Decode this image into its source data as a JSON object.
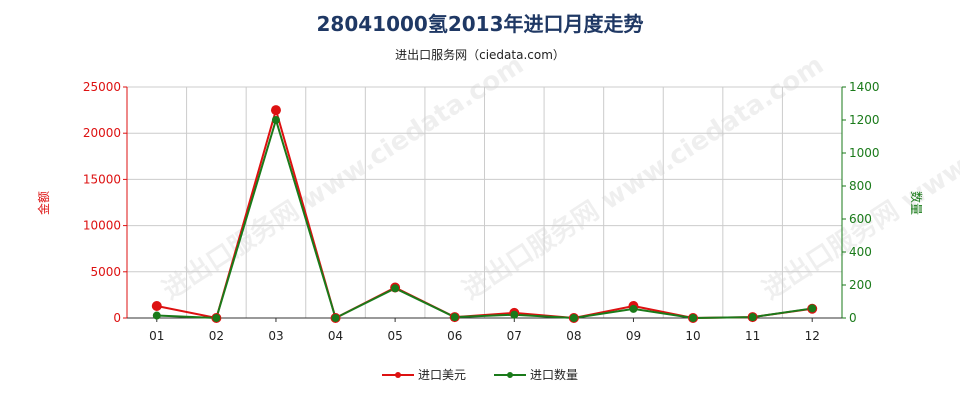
{
  "title": "28041000氢2013年进口月度走势",
  "subtitle": "进出口服务网（ciedata.com）",
  "watermark": "进出口服务网 www.ciedata.com",
  "colors": {
    "usd": "#dd1111",
    "qty": "#1a7a1a",
    "title": "#1f3864",
    "grid": "#cccccc"
  },
  "chart_data": {
    "type": "line",
    "title": "28041000氢2013年进口月度走势",
    "categories": [
      "01",
      "02",
      "03",
      "04",
      "05",
      "06",
      "07",
      "08",
      "09",
      "10",
      "11",
      "12"
    ],
    "series": [
      {
        "name": "进口美元",
        "axis": "left",
        "values": [
          1300,
          0,
          22500,
          0,
          3300,
          100,
          550,
          0,
          1300,
          0,
          100,
          1000
        ]
      },
      {
        "name": "进口数量",
        "axis": "right",
        "values": [
          15,
          0,
          1200,
          0,
          180,
          5,
          20,
          0,
          55,
          0,
          5,
          58
        ]
      }
    ],
    "ylabel_left": "金额",
    "ylabel_right": "数量",
    "ylim_left": [
      0,
      25000
    ],
    "ylim_right": [
      0,
      1400
    ],
    "yticks_left": [
      "0",
      "5000",
      "10000",
      "15000",
      "20000",
      "25000"
    ],
    "yticks_right": [
      "0",
      "200",
      "400",
      "600",
      "800",
      "1000",
      "1200",
      "1400"
    ],
    "grid": true,
    "legend_position": "bottom"
  }
}
